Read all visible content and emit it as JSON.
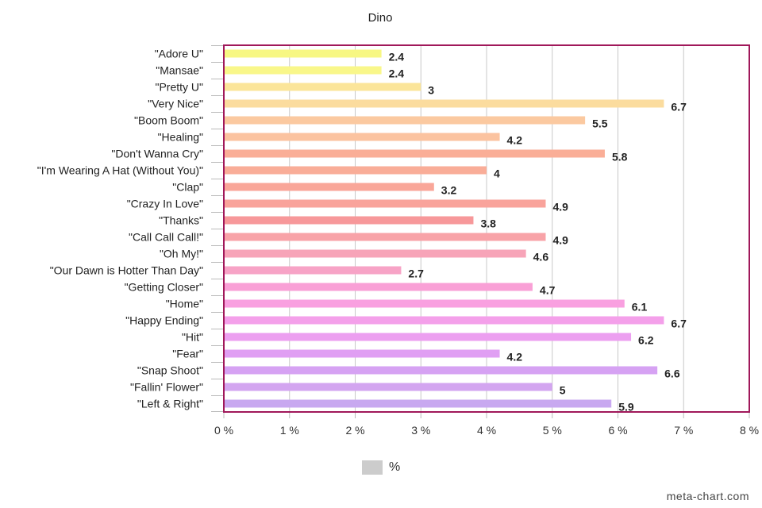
{
  "chart_data": {
    "type": "bar",
    "orientation": "horizontal",
    "title": "Dino",
    "categories": [
      "\"Adore U\"",
      "\"Mansae\"",
      "\"Pretty U\"",
      "\"Very Nice\"",
      "\"Boom Boom\"",
      "\"Healing\"",
      "\"Don't Wanna Cry\"",
      "\"I'm Wearing A Hat (Without You)\"",
      "\"Clap\"",
      "\"Crazy In Love\"",
      "\"Thanks\"",
      "\"Call Call Call!\"",
      "\"Oh My!\"",
      "\"Our Dawn is Hotter Than Day\"",
      "\"Getting Closer\"",
      "\"Home\"",
      "\"Happy Ending\"",
      "\"Hit\"",
      "\"Fear\"",
      "\"Snap Shoot\"",
      "\"Fallin' Flower\"",
      "\"Left & Right\""
    ],
    "series": [
      {
        "name": "%",
        "values": [
          2.4,
          2.4,
          3,
          6.7,
          5.5,
          4.2,
          5.8,
          4,
          3.2,
          4.9,
          3.8,
          4.9,
          4.6,
          2.7,
          4.7,
          6.1,
          6.7,
          6.2,
          4.2,
          6.6,
          5,
          5.9
        ],
        "data_labels": [
          "2.4",
          "2.4",
          "3",
          "6.7",
          "5.5",
          "4.2",
          "5.8",
          "4",
          "3.2",
          "4.9",
          "3.8",
          "4.9",
          "4.6",
          "2.7",
          "4.7",
          "6.1",
          "6.7",
          "6.2",
          "4.2",
          "6.6",
          "5",
          "5.9"
        ]
      }
    ],
    "bar_colors": [
      "#f7f783",
      "#f9f78a",
      "#fbe59a",
      "#fbdc9e",
      "#fbc9a0",
      "#fbc3a0",
      "#faae97",
      "#f9ad98",
      "#f9a699",
      "#f9a39b",
      "#f7989a",
      "#f8a3a8",
      "#f7a4b8",
      "#f7a3c6",
      "#f9a0d6",
      "#f9a0e0",
      "#f4a0ea",
      "#ec9ff0",
      "#e09ff3",
      "#d6a2f3",
      "#d3a5f0",
      "#c8a8f0"
    ],
    "x_ticks": [
      "0 %",
      "1 %",
      "2 %",
      "3 %",
      "4 %",
      "5 %",
      "6 %",
      "7 %",
      "8 %"
    ],
    "xlim": [
      0,
      8
    ],
    "grid": true,
    "plot_border_color": "#a0185a",
    "legend": {
      "label": "%",
      "color": "#cccccc",
      "position": "bottom"
    },
    "xlabel": "",
    "ylabel": ""
  },
  "watermark": "meta-chart.com"
}
